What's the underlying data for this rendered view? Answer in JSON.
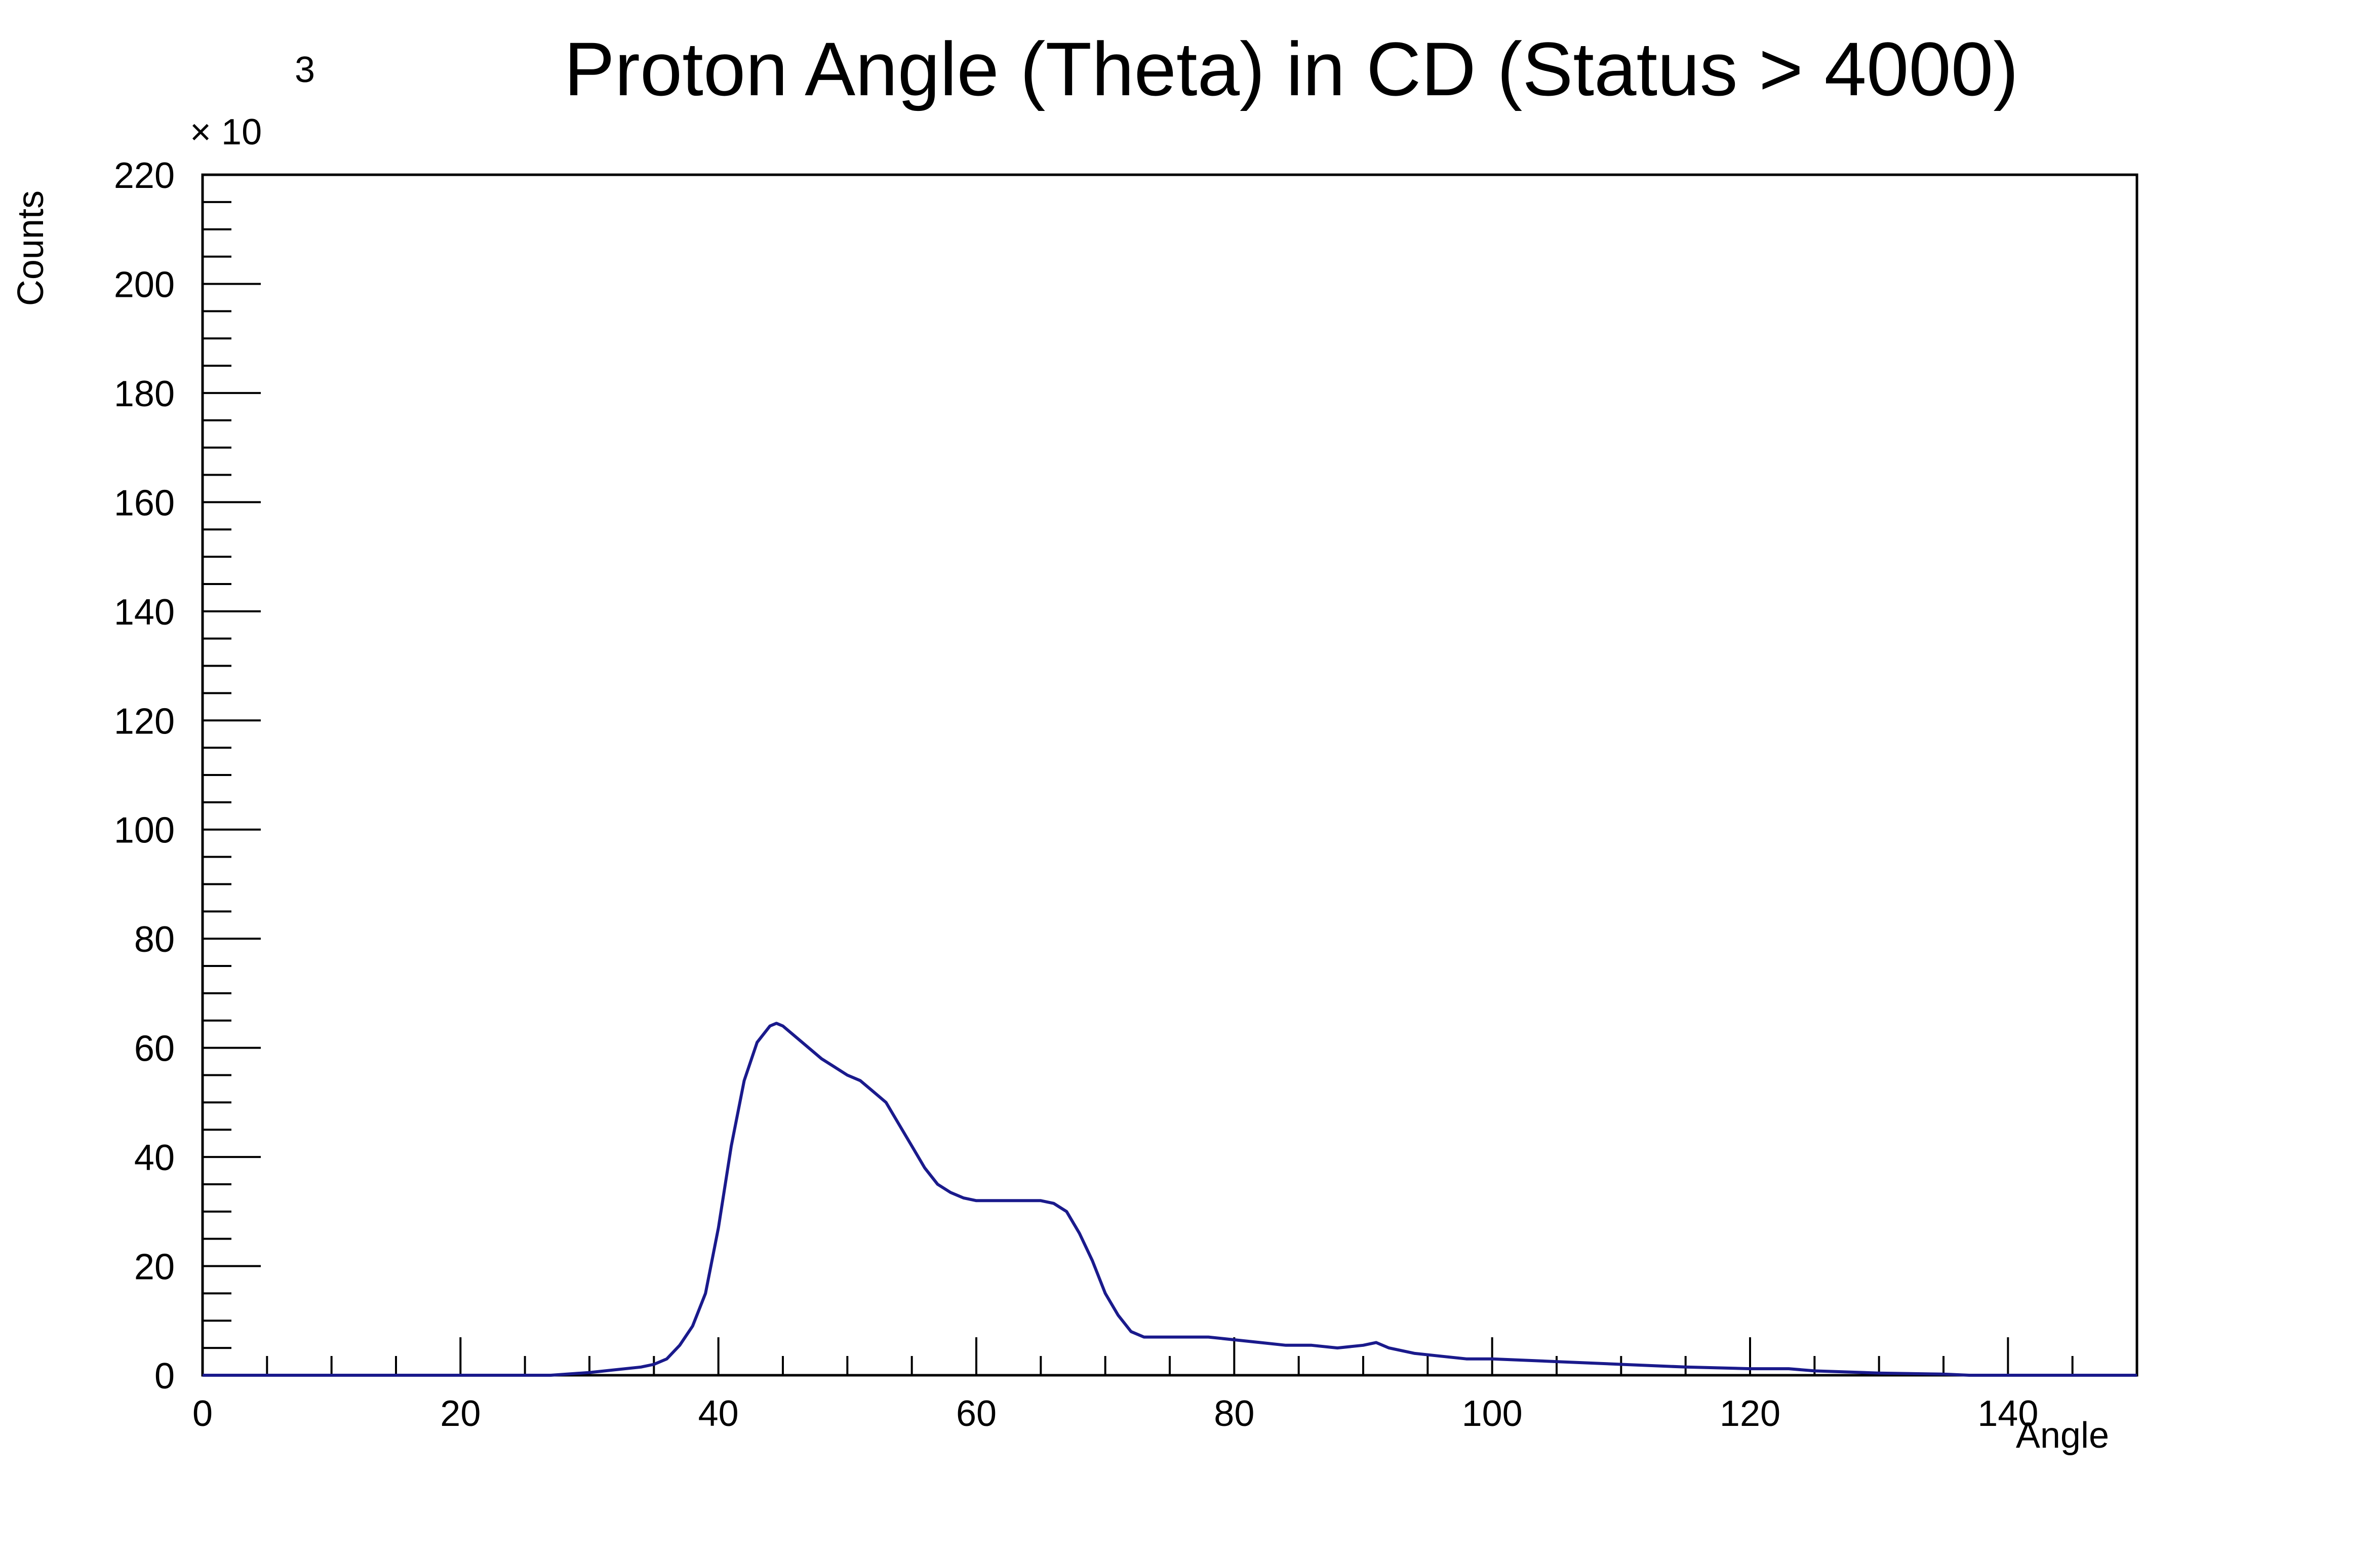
{
  "chart_data": {
    "type": "line",
    "title": "Proton Angle (Theta) in CD (Status > 4000)",
    "xlabel": "Angle",
    "ylabel": "Counts",
    "y_multiplier_label": "× 10",
    "y_multiplier_exponent": "3",
    "xlim": [
      0,
      150
    ],
    "ylim": [
      0,
      220
    ],
    "x_ticks": [
      0,
      20,
      40,
      60,
      80,
      100,
      120,
      140
    ],
    "x_tick_labels": [
      "0",
      "20",
      "40",
      "60",
      "80",
      "100",
      "120",
      "140"
    ],
    "y_ticks": [
      0,
      20,
      40,
      60,
      80,
      100,
      120,
      140,
      160,
      180,
      200,
      220
    ],
    "y_tick_labels": [
      "0",
      "20",
      "40",
      "60",
      "80",
      "100",
      "120",
      "140",
      "160",
      "180",
      "200",
      "220"
    ],
    "grid": false,
    "legend": "none",
    "line_color": "#1a1a8c",
    "series": [
      {
        "x": [
          0,
          27,
          30,
          32,
          34,
          35,
          36,
          37,
          38,
          39,
          40,
          41,
          42,
          43,
          44,
          44.5,
          45,
          46,
          47,
          48,
          49,
          50,
          51,
          52,
          53,
          54,
          55,
          56,
          57,
          58,
          59,
          60,
          61,
          62,
          63,
          64,
          65,
          66,
          67,
          68,
          69,
          70,
          71,
          72,
          73,
          74,
          75,
          76,
          78,
          80,
          82,
          84,
          86,
          88,
          90,
          91,
          92,
          94,
          96,
          98,
          100,
          105,
          110,
          115,
          120,
          123,
          125,
          130,
          135,
          137,
          140,
          150
        ],
        "y": [
          0,
          0,
          0.5,
          1,
          1.5,
          2,
          3,
          5.5,
          9,
          15,
          27,
          42,
          54,
          61,
          64,
          64.5,
          64,
          62,
          60,
          58,
          56.5,
          55,
          54,
          52,
          50,
          46,
          42,
          38,
          35,
          33.5,
          32.5,
          32,
          32,
          32,
          32,
          32,
          32,
          31.5,
          30,
          26,
          21,
          15,
          11,
          8,
          7,
          7,
          7,
          7,
          7,
          6.5,
          6,
          5.5,
          5.5,
          5,
          5.5,
          6,
          5,
          4,
          3.5,
          3,
          3,
          2.5,
          2,
          1.5,
          1.2,
          1.2,
          0.8,
          0.4,
          0.2,
          0,
          0,
          0
        ]
      }
    ]
  }
}
